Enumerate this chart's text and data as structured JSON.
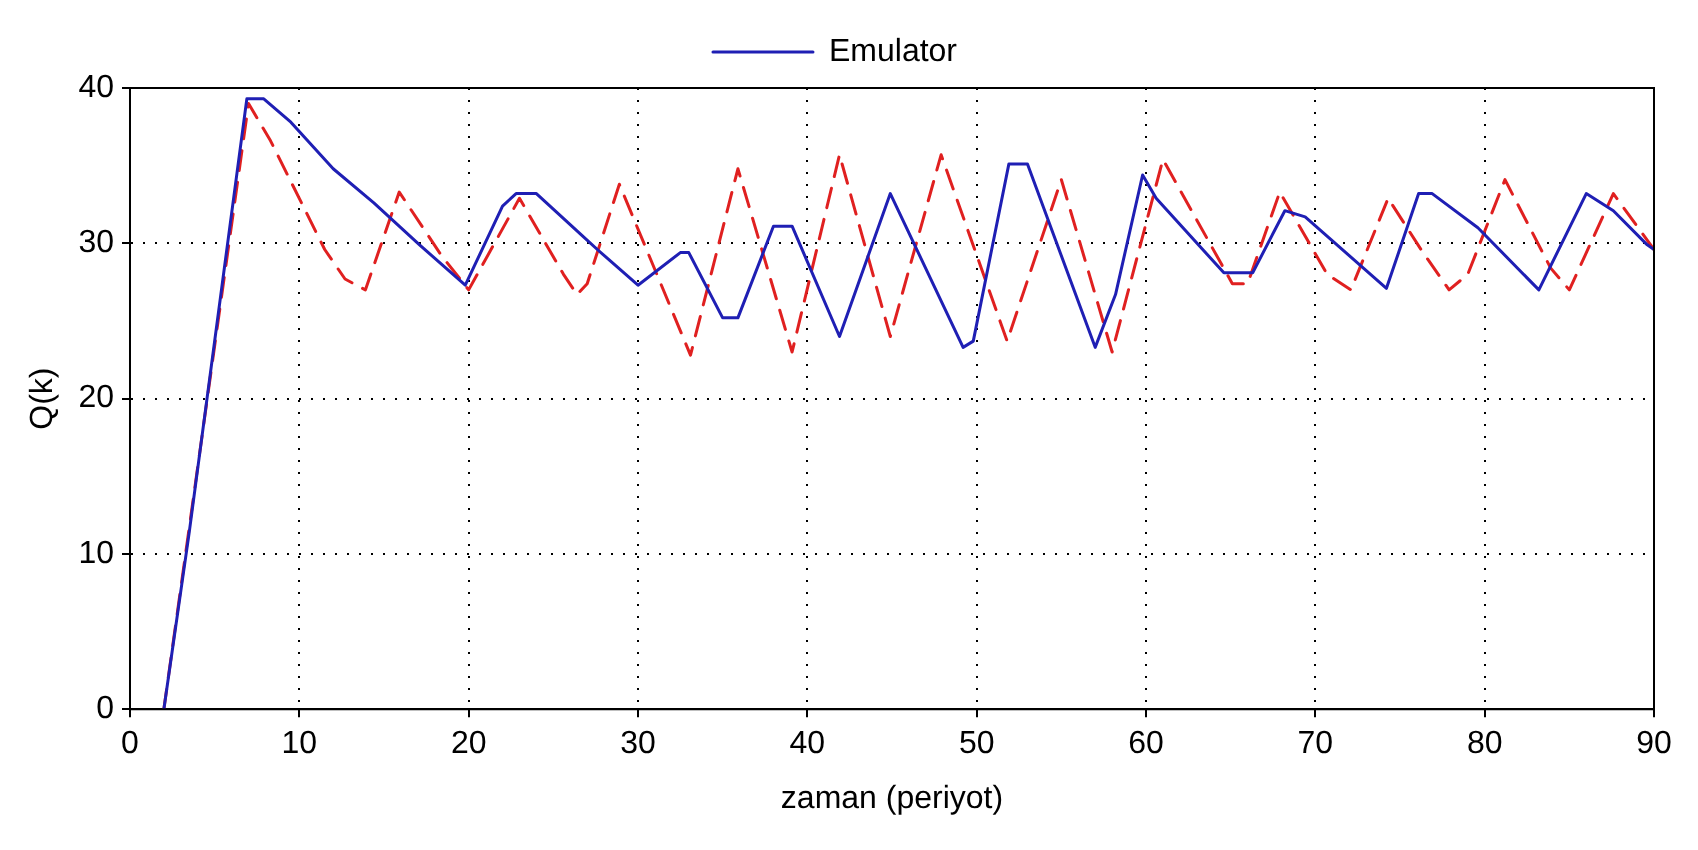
{
  "chart_data": {
    "type": "line",
    "xlabel": "zaman (periyot)",
    "ylabel": "Q(k)",
    "xlim": [
      0,
      90
    ],
    "xticks": [
      0,
      10,
      20,
      30,
      40,
      50,
      60,
      70,
      80,
      90
    ],
    "ylim": [
      0,
      40
    ],
    "yticks": [
      0,
      10,
      20,
      30,
      40
    ],
    "grid": true,
    "legend": "top",
    "series": [
      {
        "name": "Emulator",
        "color": "#1f1fb4",
        "line_style": "solid",
        "x": [
          2,
          3.5,
          6.9,
          7.9,
          9.5,
          12,
          14.4,
          17.1,
          19.8,
          22,
          22.8,
          24,
          26.8,
          27.6,
          30,
          32.5,
          33,
          35,
          35.9,
          38,
          39.1,
          41.9,
          44.9,
          49.2,
          49.8,
          51.9,
          53,
          57,
          58.2,
          59.8,
          60.6,
          64.6,
          66.3,
          68.2,
          69.4,
          74.2,
          76.1,
          76.9,
          79.6,
          83.2,
          86,
          87.6,
          89.6,
          90
        ],
        "values": [
          0,
          11.4,
          39.3,
          39.3,
          37.8,
          34.8,
          32.6,
          29.9,
          27.3,
          32.4,
          33.2,
          33.2,
          30.4,
          29.6,
          27.3,
          29.4,
          29.4,
          25.2,
          25.2,
          31.1,
          31.1,
          24,
          33.2,
          23.3,
          23.7,
          35.1,
          35.1,
          23.3,
          26.7,
          34.4,
          32.9,
          28.1,
          28.1,
          32.1,
          31.7,
          27.1,
          33.2,
          33.2,
          31,
          27,
          33.2,
          32.1,
          29.9,
          29.6
        ]
      },
      {
        "color": "#e02020",
        "line_style": "dashed",
        "x": [
          2,
          7,
          8.3,
          11.5,
          12.7,
          13.9,
          15.9,
          18.4,
          20,
          23,
          25.6,
          26.4,
          27,
          28.9,
          33.1,
          35.9,
          39.1,
          41.9,
          44.9,
          47.9,
          51.8,
          55,
          58,
          61,
          65.1,
          66,
          67.9,
          70.7,
          72.1,
          74.3,
          76.3,
          77.9,
          79,
          81.2,
          83.9,
          85,
          87.6,
          90
        ],
        "values": [
          0,
          39,
          36.6,
          29.6,
          27.7,
          27,
          33.3,
          29.2,
          27,
          32.9,
          28,
          26.7,
          27.4,
          33.8,
          22.8,
          34.8,
          23,
          35.7,
          24,
          35.7,
          23.7,
          34.1,
          23,
          35.4,
          27.4,
          27.4,
          33.3,
          28,
          27,
          32.9,
          29.5,
          27,
          28,
          34.1,
          28.4,
          27,
          33.2,
          29.6
        ]
      }
    ]
  }
}
